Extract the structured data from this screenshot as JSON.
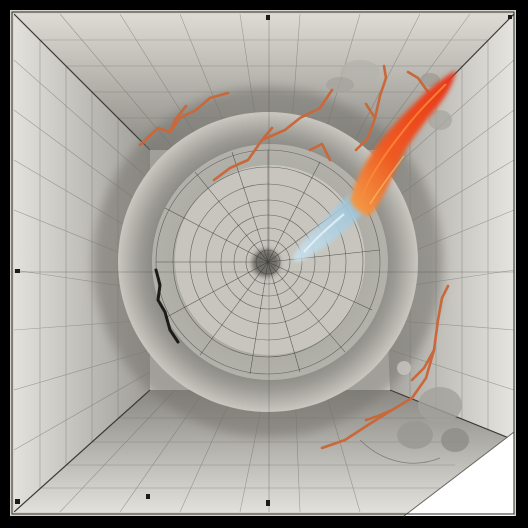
{
  "image": {
    "domain": "Natural-Image",
    "palette": {
      "frame": "#000000",
      "paper": "#d4d2cb",
      "paper_light": "#e6e4de",
      "tunnel_dark": "#555350",
      "grid": "#5e5c58",
      "flame_red": "#e8421c",
      "flame_orange": "#f07a2e",
      "smoke_blue": "#a9cfe2",
      "vein": "#c9683a",
      "corner_white": "#ffffff"
    }
  }
}
